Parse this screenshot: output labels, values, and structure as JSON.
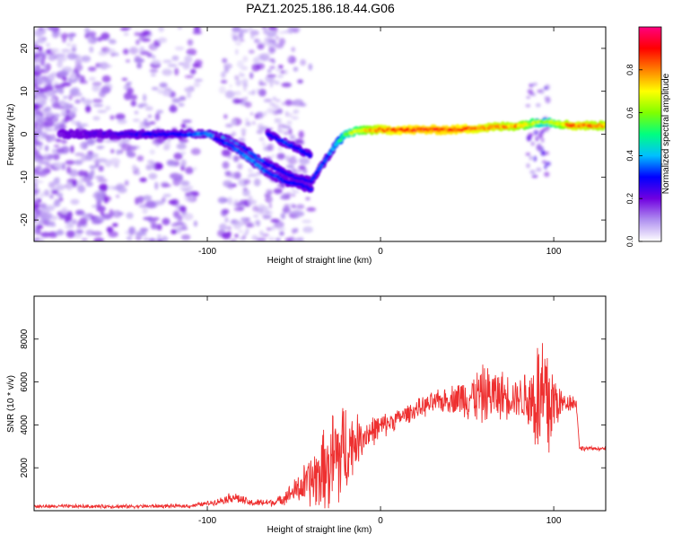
{
  "title": "PAZ1.2025.186.18.44.G06",
  "chart_data": [
    {
      "type": "heatmap",
      "title": "PAZ1.2025.186.18.44.G06",
      "xlabel": "Height of straight line (km)",
      "ylabel": "Frequency (Hz)",
      "xlim": [
        -200,
        130
      ],
      "ylim": [
        -25,
        25
      ],
      "xticks": [
        -100,
        0,
        100
      ],
      "yticks": [
        -20,
        -10,
        0,
        10,
        20
      ],
      "colorbar": {
        "label": "Normalized spectral amplitude",
        "range": [
          0,
          1
        ],
        "ticks": [
          0.0,
          0.2,
          0.4,
          0.6,
          0.8
        ],
        "colormap": [
          "#ffffff",
          "#b090f0",
          "#7000e0",
          "#0000ff",
          "#00c0ff",
          "#00ff80",
          "#80ff00",
          "#ffff00",
          "#ff8000",
          "#ff0000",
          "#ff0080"
        ]
      },
      "ridges": [
        {
          "x": [
            -185,
            -150,
            -120,
            -100,
            -90,
            -80,
            -70,
            -60,
            -50,
            -40,
            -35,
            -30,
            -25,
            -20,
            -10,
            0,
            20,
            40,
            60,
            80,
            95,
            110,
            130
          ],
          "y": [
            0,
            0,
            0,
            0,
            -1,
            -3,
            -6,
            -8,
            -10,
            -11,
            -8,
            -5,
            -2,
            0,
            1,
            1,
            1,
            1,
            1.5,
            2,
            3,
            2,
            2
          ],
          "amplitude": [
            0.2,
            0.25,
            0.3,
            0.4,
            0.4,
            0.35,
            0.35,
            0.3,
            0.3,
            0.3,
            0.35,
            0.35,
            0.45,
            0.6,
            0.75,
            0.85,
            0.9,
            0.9,
            0.85,
            0.8,
            0.6,
            0.85,
            0.8
          ]
        },
        {
          "x": [
            -95,
            -85,
            -75,
            -65,
            -55,
            -45,
            -40
          ],
          "y": [
            -1,
            -3,
            -6,
            -9,
            -11,
            -12,
            -13
          ],
          "amplitude": [
            0.3,
            0.35,
            0.4,
            0.35,
            0.3,
            0.3,
            0.3
          ]
        },
        {
          "x": [
            -65,
            -60,
            -55,
            -50,
            -45,
            -40
          ],
          "y": [
            0,
            -1,
            -2,
            -3,
            -4,
            -5
          ],
          "amplitude": [
            0.3,
            0.3,
            0.35,
            0.3,
            0.3,
            0.3
          ]
        }
      ]
    },
    {
      "type": "line",
      "xlabel": "Height of straight line (km)",
      "ylabel": "SNR (10 * v/v)",
      "xlim": [
        -200,
        130
      ],
      "ylim": [
        0,
        10000
      ],
      "xticks": [
        -100,
        0,
        100
      ],
      "yticks": [
        2000,
        4000,
        6000,
        8000
      ],
      "series": [
        {
          "color": "#ee3030",
          "envelope": {
            "x": [
              -200,
              -150,
              -110,
              -95,
              -85,
              -75,
              -60,
              -50,
              -40,
              -30,
              -25,
              -20,
              -15,
              -10,
              -5,
              0,
              10,
              20,
              30,
              40,
              50,
              60,
              70,
              80,
              88,
              93,
              97,
              100,
              105,
              110,
              113,
              115,
              120,
              130
            ],
            "mean": [
              200,
              200,
              220,
              400,
              650,
              350,
              400,
              900,
              1400,
              2000,
              2500,
              2900,
              3200,
              3500,
              3700,
              3900,
              4300,
              4700,
              5000,
              5200,
              5300,
              5400,
              5400,
              5300,
              5200,
              5000,
              4900,
              5100,
              5000,
              5100,
              5000,
              2900,
              2900,
              2900
            ],
            "spread": [
              100,
              100,
              100,
              150,
              300,
              200,
              200,
              600,
              1500,
              2500,
              3500,
              2500,
              1500,
              1000,
              800,
              700,
              500,
              500,
              600,
              700,
              1200,
              1600,
              1300,
              1000,
              2500,
              4500,
              4000,
              2000,
              600,
              500,
              300,
              150,
              100,
              100
            ]
          }
        }
      ]
    }
  ]
}
